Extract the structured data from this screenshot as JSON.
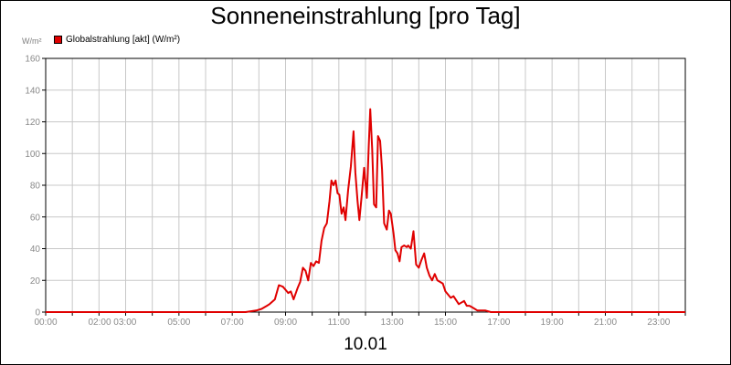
{
  "colors": {
    "series": "#e00000",
    "grid": "#c8c8c8",
    "axis": "#000000",
    "tick_text": "#8a8a8a"
  },
  "date_label": "10.01",
  "chart_data": {
    "type": "line",
    "title": "Sonneneinstrahlung [pro Tag]",
    "ylabel": "W/m²",
    "xlabel": "",
    "ylim": [
      0,
      160
    ],
    "xlim": [
      0,
      24
    ],
    "y_ticks": [
      0,
      20,
      40,
      60,
      80,
      100,
      120,
      140,
      160
    ],
    "x_tick_labels": [
      "00:00",
      "02:00 03:00",
      "05:00",
      "07:00",
      "09:00",
      "11:00",
      "13:00",
      "15:00",
      "17:00",
      "19:00",
      "21:00",
      "23:00"
    ],
    "grid": true,
    "legend_position": "top-left",
    "series": [
      {
        "name": "Globalstrahlung [akt] (W/m²)",
        "x": [
          0,
          7.5,
          7.9,
          8.1,
          8.3,
          8.4,
          8.6,
          8.75,
          8.9,
          9.05,
          9.1,
          9.2,
          9.3,
          9.45,
          9.55,
          9.65,
          9.75,
          9.85,
          9.95,
          10.05,
          10.15,
          10.25,
          10.35,
          10.45,
          10.55,
          10.65,
          10.72,
          10.8,
          10.88,
          10.95,
          11.02,
          11.1,
          11.18,
          11.25,
          11.35,
          11.45,
          11.55,
          11.62,
          11.7,
          11.77,
          11.85,
          11.95,
          12.05,
          12.12,
          12.18,
          12.25,
          12.32,
          12.4,
          12.47,
          12.55,
          12.62,
          12.7,
          12.8,
          12.88,
          12.95,
          13.05,
          13.12,
          13.2,
          13.28,
          13.35,
          13.45,
          13.55,
          13.6,
          13.7,
          13.8,
          13.9,
          14.0,
          14.1,
          14.2,
          14.3,
          14.4,
          14.5,
          14.6,
          14.7,
          14.8,
          14.9,
          15.0,
          15.1,
          15.2,
          15.3,
          15.5,
          15.7,
          15.8,
          15.9,
          16.0,
          16.1,
          16.2,
          16.35,
          16.5,
          16.7,
          16.9,
          17.1,
          17.3,
          24
        ],
        "values": [
          0,
          0,
          1,
          2,
          4,
          5,
          8,
          17,
          16,
          13,
          12,
          13,
          8,
          15,
          19,
          28,
          26,
          20,
          31,
          29,
          32,
          31,
          45,
          53,
          56,
          70,
          83,
          80,
          83,
          75,
          74,
          62,
          66,
          58,
          77,
          92,
          114,
          88,
          70,
          58,
          72,
          91,
          72,
          104,
          128,
          103,
          68,
          66,
          111,
          108,
          90,
          56,
          52,
          64,
          62,
          50,
          39,
          37,
          32,
          41,
          42,
          41,
          42,
          40,
          51,
          30,
          28,
          33,
          37,
          28,
          23,
          20,
          24,
          20,
          19,
          18,
          13,
          11,
          9,
          10,
          5,
          7,
          4,
          4,
          3,
          2,
          1,
          1,
          1,
          0,
          0,
          0,
          0,
          0
        ]
      }
    ]
  }
}
